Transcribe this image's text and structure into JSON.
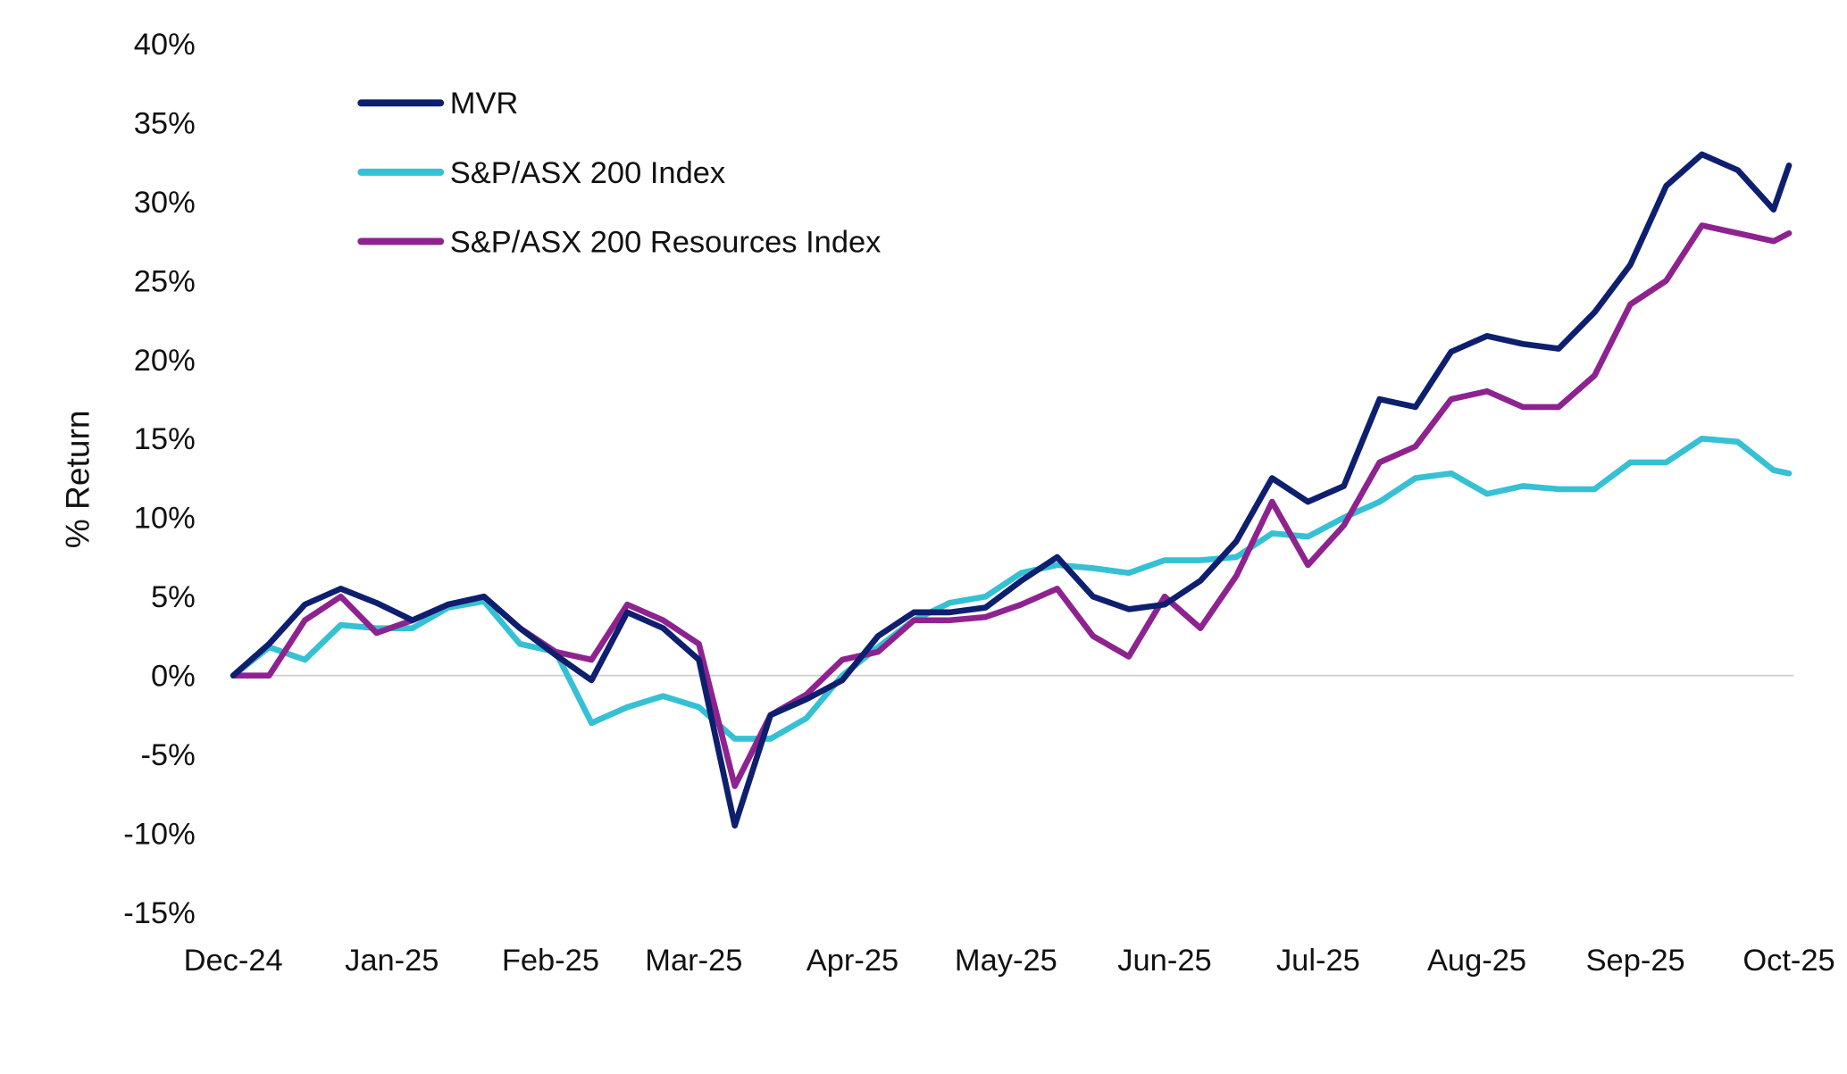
{
  "chart_data": {
    "type": "line",
    "title": "",
    "xlabel": "",
    "ylabel": "% Return",
    "ylim": [
      -15,
      40
    ],
    "ytick_step": 5,
    "yticks": [
      "40%",
      "35%",
      "30%",
      "25%",
      "20%",
      "15%",
      "10%",
      "5%",
      "0%",
      "-5%",
      "-10%",
      "-15%"
    ],
    "xticks": [
      {
        "label": "Dec-24",
        "date": "2024-12-01"
      },
      {
        "label": "Jan-25",
        "date": "2025-01-01"
      },
      {
        "label": "Feb-25",
        "date": "2025-02-01"
      },
      {
        "label": "Mar-25",
        "date": "2025-03-01"
      },
      {
        "label": "Apr-25",
        "date": "2025-04-01"
      },
      {
        "label": "May-25",
        "date": "2025-05-01"
      },
      {
        "label": "Jun-25",
        "date": "2025-06-01"
      },
      {
        "label": "Jul-25",
        "date": "2025-07-01"
      },
      {
        "label": "Aug-25",
        "date": "2025-08-01"
      },
      {
        "label": "Sep-25",
        "date": "2025-09-01"
      },
      {
        "label": "Oct-25",
        "date": "2025-10-01"
      }
    ],
    "grid": false,
    "zero_line": true,
    "legend_position": "top-left",
    "x": [
      "2024-12-01",
      "2024-12-08",
      "2024-12-15",
      "2024-12-22",
      "2024-12-29",
      "2025-01-05",
      "2025-01-12",
      "2025-01-19",
      "2025-01-26",
      "2025-02-02",
      "2025-02-09",
      "2025-02-16",
      "2025-02-23",
      "2025-03-02",
      "2025-03-09",
      "2025-03-16",
      "2025-03-23",
      "2025-03-30",
      "2025-04-06",
      "2025-04-13",
      "2025-04-20",
      "2025-04-27",
      "2025-05-04",
      "2025-05-11",
      "2025-05-18",
      "2025-05-25",
      "2025-06-01",
      "2025-06-08",
      "2025-06-15",
      "2025-06-22",
      "2025-06-29",
      "2025-07-06",
      "2025-07-13",
      "2025-07-20",
      "2025-07-27",
      "2025-08-03",
      "2025-08-10",
      "2025-08-17",
      "2025-08-24",
      "2025-08-31",
      "2025-09-07",
      "2025-09-14",
      "2025-09-21",
      "2025-09-28",
      "2025-10-01"
    ],
    "series": [
      {
        "name": "MVR",
        "color": "#0d1f6e",
        "values": [
          0,
          2,
          4.5,
          5.5,
          4.6,
          3.5,
          4.5,
          5,
          3,
          1.3,
          -0.3,
          4,
          3,
          1,
          -9.5,
          -2.5,
          -1.5,
          -0.3,
          2.5,
          4,
          4,
          4.3,
          6,
          7.5,
          5,
          4.2,
          4.5,
          6,
          8.5,
          12.5,
          11,
          12,
          17.5,
          17,
          20.5,
          21.5,
          21,
          20.7,
          23,
          26,
          31,
          33,
          32,
          29.5,
          32.3
        ]
      },
      {
        "name": "S&P/ASX 200 Index",
        "color": "#35c1d3",
        "values": [
          0,
          1.8,
          1,
          3.2,
          3,
          3,
          4.3,
          4.7,
          2,
          1.5,
          -3,
          -2,
          -1.3,
          -2,
          -4,
          -4,
          -2.7,
          0,
          1.8,
          3.5,
          4.6,
          5,
          6.5,
          7,
          6.8,
          6.5,
          7.3,
          7.3,
          7.5,
          9,
          8.8,
          10,
          11,
          12.5,
          12.8,
          11.5,
          12,
          11.8,
          11.8,
          13.5,
          13.5,
          15,
          14.8,
          13,
          12.8
        ]
      },
      {
        "name": "S&P/ASX 200 Resources Index",
        "color": "#8e2390",
        "values": [
          0,
          0,
          3.5,
          5,
          2.7,
          3.5,
          4.5,
          5,
          3,
          1.5,
          1,
          4.5,
          3.5,
          2,
          -7,
          -2.5,
          -1.2,
          1,
          1.5,
          3.5,
          3.5,
          3.7,
          4.5,
          5.5,
          2.5,
          1.2,
          5,
          3,
          6.3,
          11,
          7,
          9.5,
          13.5,
          14.5,
          17.5,
          18,
          17,
          17,
          19,
          23.5,
          25,
          28.5,
          28,
          27.5,
          28
        ]
      }
    ]
  }
}
